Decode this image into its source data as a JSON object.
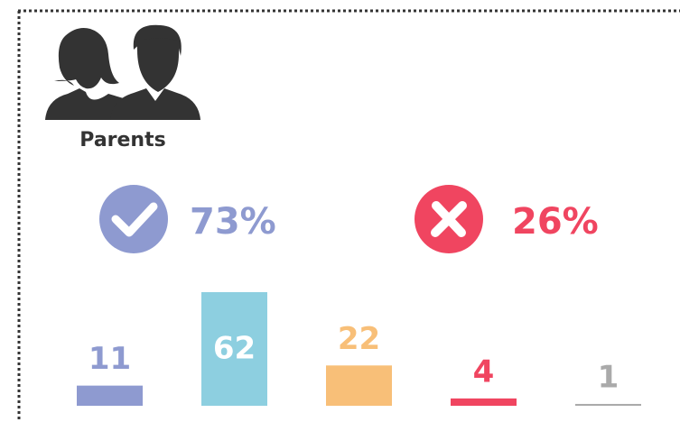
{
  "chart_data": {
    "type": "bar",
    "title": "Parents",
    "summary": [
      {
        "value": 73,
        "label": "73%",
        "color": "#8e9ad0"
      },
      {
        "value": 26,
        "label": "26%",
        "color": "#f04560"
      }
    ],
    "categories": [
      null,
      null,
      null,
      null,
      null
    ],
    "values": [
      11,
      62,
      22,
      4,
      1
    ],
    "colors": [
      "#8e9ad0",
      "#8dcfe0",
      "#f8bf78",
      "#f04560",
      "#aaaaaa"
    ],
    "ylim": [
      0,
      62
    ]
  }
}
